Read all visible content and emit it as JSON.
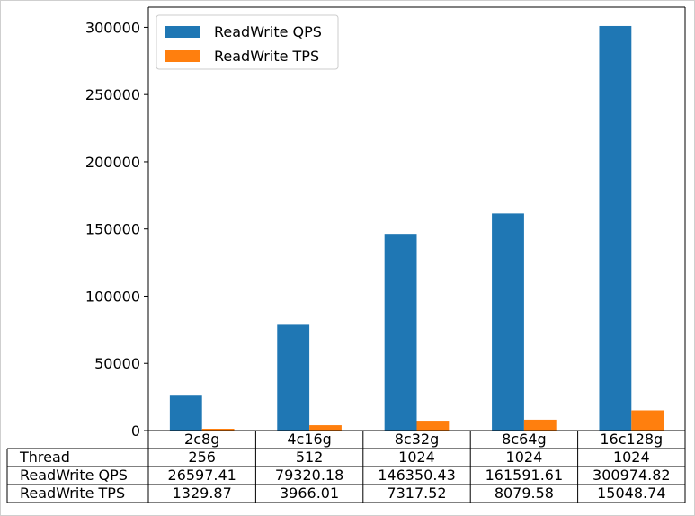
{
  "chart_data": {
    "type": "bar",
    "categories": [
      "2c8g",
      "4c16g",
      "8c32g",
      "8c64g",
      "16c128g"
    ],
    "series": [
      {
        "name": "ReadWrite QPS",
        "color": "#1f77b4",
        "values": [
          26597.41,
          79320.18,
          146350.43,
          161591.61,
          300974.82
        ]
      },
      {
        "name": "ReadWrite TPS",
        "color": "#ff7f0e",
        "values": [
          1329.87,
          3966.01,
          7317.52,
          8079.58,
          15048.74
        ]
      }
    ],
    "ylim": [
      0,
      315000
    ],
    "yticks": [
      0,
      50000,
      100000,
      150000,
      200000,
      250000,
      300000
    ],
    "ytick_labels": [
      "0",
      "50000",
      "100000",
      "150000",
      "200000",
      "250000",
      "300000"
    ],
    "legend_location": "top-left",
    "grid": false,
    "title": "",
    "xlabel": "",
    "ylabel": "",
    "table": {
      "rows": [
        {
          "label": "Thread",
          "cells": [
            "256",
            "512",
            "1024",
            "1024",
            "1024"
          ]
        },
        {
          "label": "ReadWrite QPS",
          "cells": [
            "26597.41",
            "79320.18",
            "146350.43",
            "161591.61",
            "300974.82"
          ]
        },
        {
          "label": "ReadWrite TPS",
          "cells": [
            "1329.87",
            "3966.01",
            "7317.52",
            "8079.58",
            "15048.74"
          ]
        }
      ]
    }
  }
}
